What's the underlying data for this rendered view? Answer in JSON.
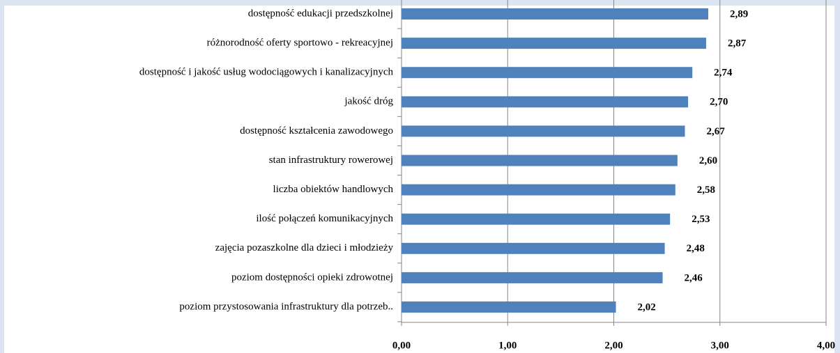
{
  "chart_data": {
    "type": "bar",
    "orientation": "horizontal",
    "categories": [
      "dostępność edukacji przedszkolnej",
      "różnorodność oferty sportowo - rekreacyjnej",
      "dostępność i jakość usług wodociągowych i kanalizacyjnych",
      "jakość dróg",
      "dostępność kształcenia zawodowego",
      "stan infrastruktury rowerowej",
      "liczba obiektów handlowych",
      "ilość połączeń komunikacyjnych",
      "zajęcia pozaszkolne dla dzieci i młodzieży",
      "poziom dostępności opieki zdrowotnej",
      "poziom przystosowania infrastruktury dla potrzeb.."
    ],
    "values": [
      2.89,
      2.87,
      2.74,
      2.7,
      2.67,
      2.6,
      2.58,
      2.53,
      2.48,
      2.46,
      2.02
    ],
    "value_labels": [
      "2,89",
      "2,87",
      "2,74",
      "2,70",
      "2,67",
      "2,60",
      "2,58",
      "2,53",
      "2,48",
      "2,46",
      "2,02"
    ],
    "color": "#4f81bd",
    "xlim": [
      0,
      4
    ],
    "xticks": [
      {
        "value": 0,
        "label": "0,00"
      },
      {
        "value": 1,
        "label": "1,00"
      },
      {
        "value": 2,
        "label": "2,00"
      },
      {
        "value": 3,
        "label": "3,00"
      },
      {
        "value": 4,
        "label": "4,00"
      }
    ],
    "grid": true
  }
}
